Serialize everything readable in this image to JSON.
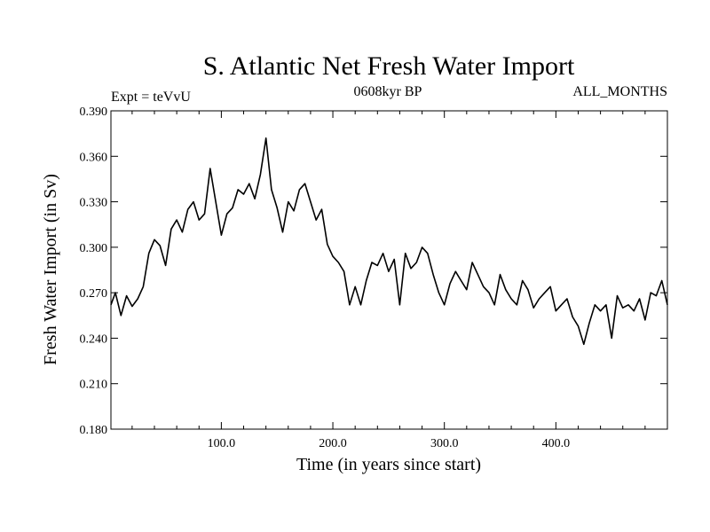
{
  "chart_data": {
    "type": "line",
    "title": "S. Atlantic Net Fresh Water Import",
    "subtitle_left": "Expt = teVvU",
    "subtitle_center": "0608kyr BP",
    "subtitle_right": "ALL_MONTHS",
    "xlabel": "Time (in years since start)",
    "ylabel": "Fresh Water Import (in Sv)",
    "xlim": [
      1,
      500
    ],
    "ylim": [
      0.18,
      0.39
    ],
    "xticks": [
      100,
      200,
      300,
      400
    ],
    "xtick_labels": [
      "100.0",
      "200.0",
      "300.0",
      "400.0"
    ],
    "yticks": [
      0.18,
      0.21,
      0.24,
      0.27,
      0.3,
      0.33,
      0.36,
      0.39
    ],
    "ytick_labels": [
      "0.180",
      "0.210",
      "0.240",
      "0.270",
      "0.300",
      "0.330",
      "0.360",
      "0.390"
    ],
    "grid": false,
    "line_color": "#000000",
    "series": [
      {
        "x": [
          1,
          5,
          10,
          15,
          20,
          25,
          30,
          35,
          40,
          45,
          50,
          55,
          60,
          65,
          70,
          75,
          80,
          85,
          90,
          95,
          100,
          105,
          110,
          115,
          120,
          125,
          130,
          135,
          140,
          145,
          150,
          155,
          160,
          165,
          170,
          175,
          180,
          185,
          190,
          195,
          200,
          205,
          210,
          215,
          220,
          225,
          230,
          235,
          240,
          245,
          250,
          255,
          260,
          265,
          270,
          275,
          280,
          285,
          290,
          295,
          300,
          305,
          310,
          315,
          320,
          325,
          330,
          335,
          340,
          345,
          350,
          355,
          360,
          365,
          370,
          375,
          380,
          385,
          390,
          395,
          400,
          405,
          410,
          415,
          420,
          425,
          430,
          435,
          440,
          445,
          450,
          455,
          460,
          465,
          470,
          475,
          480,
          485,
          490,
          495,
          500
        ],
        "y": [
          0.262,
          0.27,
          0.255,
          0.268,
          0.261,
          0.266,
          0.274,
          0.296,
          0.305,
          0.301,
          0.288,
          0.312,
          0.318,
          0.31,
          0.325,
          0.33,
          0.318,
          0.322,
          0.352,
          0.33,
          0.308,
          0.322,
          0.326,
          0.338,
          0.335,
          0.342,
          0.332,
          0.348,
          0.372,
          0.338,
          0.326,
          0.31,
          0.33,
          0.324,
          0.338,
          0.342,
          0.33,
          0.318,
          0.325,
          0.302,
          0.294,
          0.29,
          0.284,
          0.262,
          0.274,
          0.262,
          0.278,
          0.29,
          0.288,
          0.296,
          0.284,
          0.292,
          0.262,
          0.296,
          0.286,
          0.29,
          0.3,
          0.296,
          0.282,
          0.27,
          0.262,
          0.276,
          0.284,
          0.278,
          0.272,
          0.29,
          0.282,
          0.274,
          0.27,
          0.262,
          0.282,
          0.272,
          0.266,
          0.262,
          0.278,
          0.272,
          0.26,
          0.266,
          0.27,
          0.274,
          0.258,
          0.262,
          0.266,
          0.254,
          0.248,
          0.236,
          0.25,
          0.262,
          0.258,
          0.262,
          0.24,
          0.268,
          0.26,
          0.262,
          0.258,
          0.266,
          0.252,
          0.27,
          0.268,
          0.278,
          0.262
        ]
      }
    ]
  }
}
